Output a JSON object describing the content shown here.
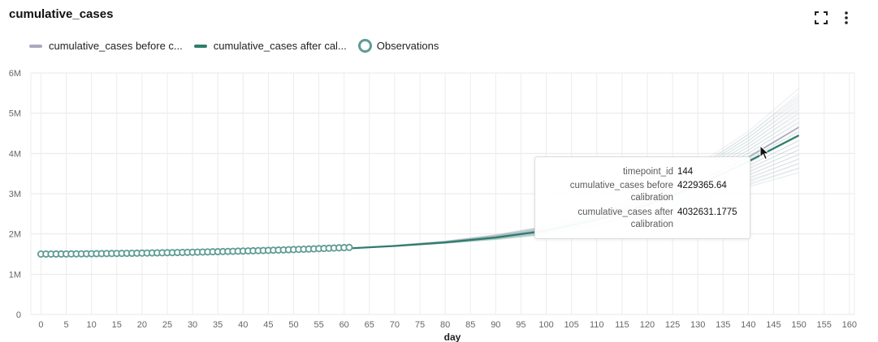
{
  "header": {
    "title": "cumulative_cases",
    "fullscreen_icon": "fullscreen-icon",
    "menu_icon": "more-vertical-icon"
  },
  "legend": {
    "items": [
      {
        "label": "cumulative_cases before c...",
        "color": "#a9a9c0",
        "kind": "line"
      },
      {
        "label": "cumulative_cases after cal...",
        "color": "#2e7d6b",
        "kind": "line"
      },
      {
        "label": "Observations",
        "color": "#5e9c94",
        "kind": "circle"
      }
    ]
  },
  "tooltip": {
    "rows": [
      {
        "key": "timepoint_id",
        "value": "144"
      },
      {
        "key": "cumulative_cases before calibration",
        "value": "4229365.64"
      },
      {
        "key": "cumulative_cases after calibration",
        "value": "4032631.1775"
      }
    ]
  },
  "chart_data": {
    "type": "line",
    "title": "cumulative_cases",
    "xlabel": "day",
    "ylabel": "",
    "xlim": [
      -2,
      161
    ],
    "ylim": [
      0,
      6000000
    ],
    "x_ticks": [
      0,
      5,
      10,
      15,
      20,
      25,
      30,
      35,
      40,
      45,
      50,
      55,
      60,
      65,
      70,
      75,
      80,
      85,
      90,
      95,
      100,
      105,
      110,
      115,
      120,
      125,
      130,
      135,
      140,
      145,
      150,
      155,
      160
    ],
    "y_ticks": [
      {
        "value": 0,
        "label": "0"
      },
      {
        "value": 1000000,
        "label": "1M"
      },
      {
        "value": 2000000,
        "label": "2M"
      },
      {
        "value": 3000000,
        "label": "3M"
      },
      {
        "value": 4000000,
        "label": "4M"
      },
      {
        "value": 5000000,
        "label": "5M"
      },
      {
        "value": 6000000,
        "label": "6M"
      }
    ],
    "grid": true,
    "series": [
      {
        "name": "cumulative_cases before calibration",
        "color": "#a9a9c0",
        "x": [
          0,
          10,
          20,
          30,
          40,
          50,
          60,
          70,
          80,
          90,
          100,
          110,
          120,
          130,
          140,
          150
        ],
        "y": [
          1500000,
          1510000,
          1525000,
          1545000,
          1570000,
          1600000,
          1640000,
          1710000,
          1800000,
          1930000,
          2100000,
          2400000,
          2800000,
          3300000,
          3900000,
          4650000
        ]
      },
      {
        "name": "cumulative_cases after calibration",
        "color": "#2e7d6b",
        "x": [
          0,
          10,
          20,
          30,
          40,
          50,
          60,
          70,
          80,
          90,
          100,
          110,
          120,
          130,
          140,
          150
        ],
        "y": [
          1500000,
          1510000,
          1525000,
          1545000,
          1565000,
          1595000,
          1635000,
          1700000,
          1790000,
          1910000,
          2080000,
          2350000,
          2720000,
          3200000,
          3800000,
          4450000
        ]
      },
      {
        "name": "Observations",
        "color": "#5e9c94",
        "x": [
          0,
          1,
          2,
          3,
          4,
          5,
          6,
          7,
          8,
          9,
          10,
          11,
          12,
          13,
          14,
          15,
          16,
          17,
          18,
          19,
          20,
          21,
          22,
          23,
          24,
          25,
          26,
          27,
          28,
          29,
          30,
          31,
          32,
          33,
          34,
          35,
          36,
          37,
          38,
          39,
          40,
          41,
          42,
          43,
          44,
          45,
          46,
          47,
          48,
          49,
          50,
          51,
          52,
          53,
          54,
          55,
          56,
          57,
          58,
          59,
          60,
          61
        ],
        "y": [
          1500000,
          1500500,
          1501000,
          1501500,
          1502000,
          1503000,
          1504000,
          1505000,
          1506000,
          1507000,
          1508000,
          1509500,
          1511000,
          1512500,
          1514000,
          1515500,
          1517000,
          1518500,
          1520000,
          1522000,
          1524000,
          1526000,
          1528000,
          1530000,
          1532000,
          1534000,
          1536000,
          1538500,
          1541000,
          1543500,
          1546000,
          1548500,
          1551000,
          1554000,
          1557000,
          1560000,
          1563000,
          1566000,
          1569000,
          1572000,
          1575000,
          1578500,
          1582000,
          1585500,
          1589000,
          1592500,
          1596000,
          1600000,
          1604000,
          1608000,
          1612000,
          1616000,
          1620000,
          1625000,
          1630000,
          1635000,
          1640000,
          1645000,
          1650000,
          1655000,
          1660000,
          1665000
        ]
      }
    ]
  }
}
